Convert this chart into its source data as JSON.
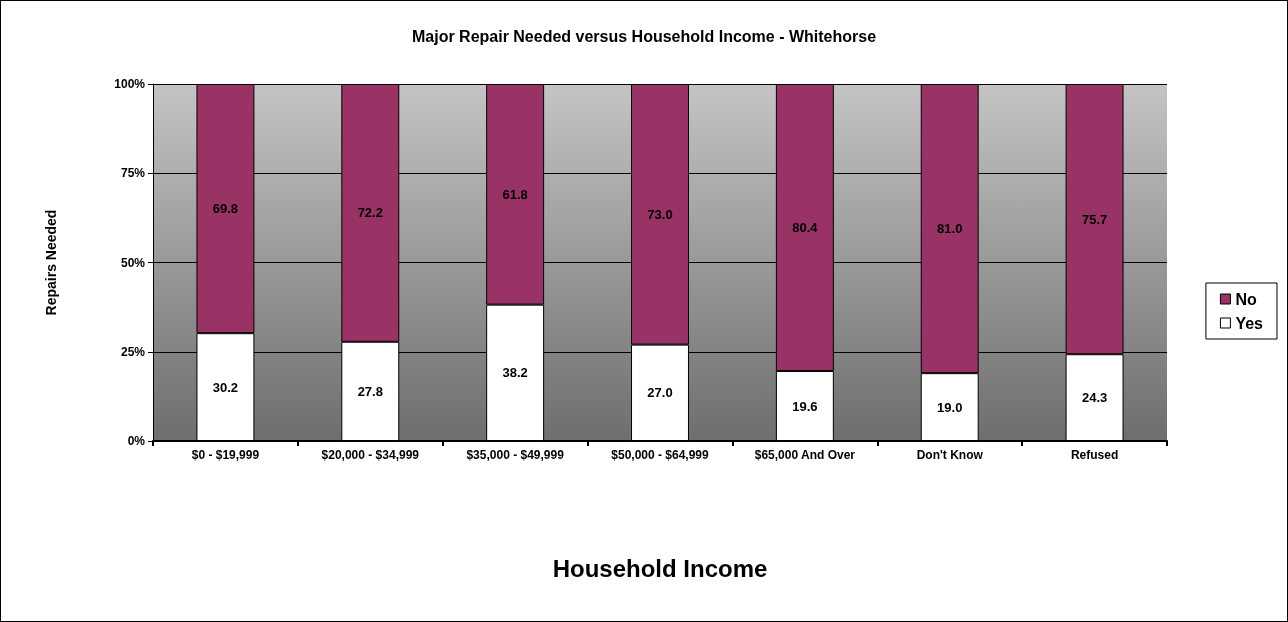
{
  "chart_data": {
    "type": "bar",
    "title": "Major Repair Needed versus Household Income - Whitehorse",
    "xlabel": "Household Income",
    "ylabel": "Repairs Needed",
    "categories": [
      "$0 - $19,999",
      "$20,000 - $34,999",
      "$35,000 - $49,999",
      "$50,000 - $64,999",
      "$65,000 And Over",
      "Don't Know",
      "Refused"
    ],
    "stacked": true,
    "grid": "y",
    "legend": "right",
    "ylim": [
      0,
      100
    ],
    "yticks": [
      {
        "value": 0,
        "label": "0%"
      },
      {
        "value": 25,
        "label": "25%"
      },
      {
        "value": 50,
        "label": "50%"
      },
      {
        "value": 75,
        "label": "75%"
      },
      {
        "value": 100,
        "label": "100%"
      }
    ],
    "series": [
      {
        "name": "Yes",
        "color": "#ffffff",
        "values": [
          30.2,
          27.8,
          38.2,
          27.0,
          19.6,
          19.0,
          24.3
        ],
        "value_labels": [
          "30.2",
          "27.8",
          "38.2",
          "27.0",
          "19.6",
          "19.0",
          "24.3"
        ]
      },
      {
        "name": "No",
        "color": "#993366",
        "values": [
          69.8,
          72.2,
          61.8,
          73.0,
          80.4,
          81.0,
          75.7
        ],
        "value_labels": [
          "69.8",
          "72.2",
          "61.8",
          "73.0",
          "80.4",
          "81.0",
          "75.7"
        ]
      }
    ]
  }
}
